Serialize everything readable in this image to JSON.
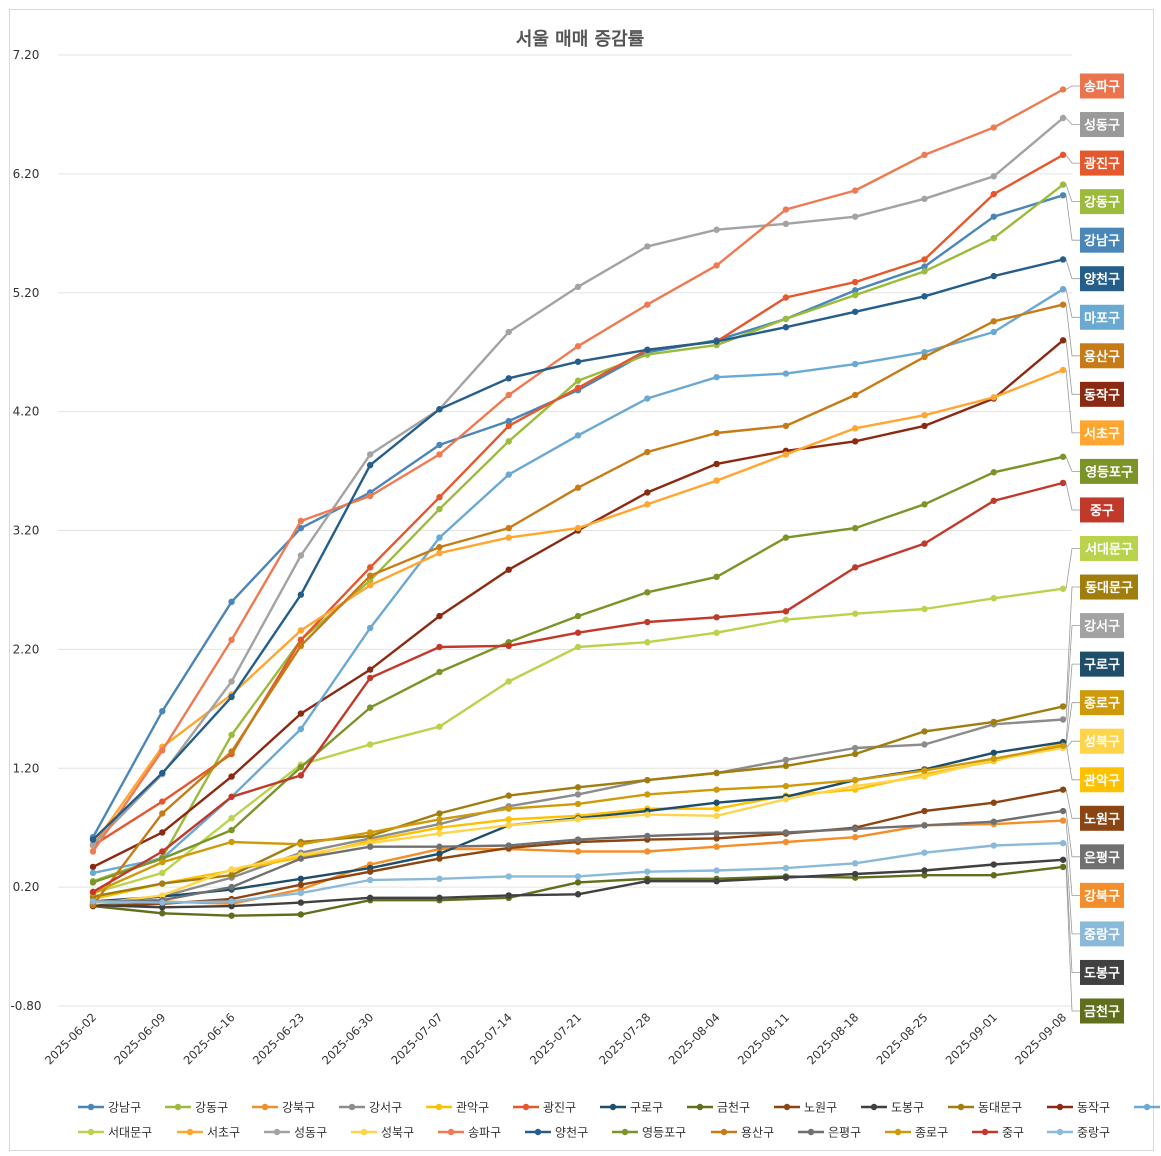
{
  "chart_data": {
    "type": "line",
    "title": "서울 매매 증감률",
    "xlabel": "",
    "ylabel": "",
    "ylim": [
      -0.8,
      7.2
    ],
    "yticks": [
      "7.20",
      "6.20",
      "5.20",
      "4.20",
      "3.20",
      "2.20",
      "1.20",
      "0.20",
      "-0.80"
    ],
    "ytick_values": [
      7.2,
      6.2,
      5.2,
      4.2,
      3.2,
      2.2,
      1.2,
      0.2,
      -0.8
    ],
    "categories": [
      "2025-06-02",
      "2025-06-09",
      "2025-06-16",
      "2025-06-23",
      "2025-06-30",
      "2025-07-07",
      "2025-07-14",
      "2025-07-21",
      "2025-07-28",
      "2025-08-04",
      "2025-08-11",
      "2025-08-18",
      "2025-08-25",
      "2025-09-01",
      "2025-09-08"
    ],
    "legend_position": "bottom",
    "series": [
      {
        "name": "강남구",
        "color": "#4a86b8",
        "values": [
          0.62,
          1.68,
          2.6,
          3.22,
          3.52,
          3.92,
          4.12,
          4.38,
          4.7,
          4.8,
          4.98,
          5.22,
          5.42,
          5.84,
          6.02
        ]
      },
      {
        "name": "강동구",
        "color": "#9bbb3b",
        "values": [
          0.25,
          0.45,
          1.48,
          2.28,
          2.78,
          3.38,
          3.95,
          4.46,
          4.68,
          4.76,
          4.98,
          5.18,
          5.38,
          5.66,
          6.11
        ]
      },
      {
        "name": "강북구",
        "color": "#f28e2b",
        "values": [
          0.06,
          0.08,
          0.06,
          0.18,
          0.39,
          0.52,
          0.52,
          0.5,
          0.5,
          0.54,
          0.58,
          0.62,
          0.72,
          0.73,
          0.76
        ]
      },
      {
        "name": "강서구",
        "color": "#8c8c8c",
        "values": [
          0.07,
          0.12,
          0.28,
          0.49,
          0.61,
          0.73,
          0.88,
          0.98,
          1.1,
          1.16,
          1.27,
          1.37,
          1.4,
          1.57,
          1.61
        ]
      },
      {
        "name": "관악구",
        "color": "#ffc000",
        "values": [
          0.1,
          0.23,
          0.34,
          0.45,
          0.59,
          0.7,
          0.77,
          0.8,
          0.86,
          0.86,
          0.97,
          1.02,
          1.15,
          1.26,
          1.41
        ]
      },
      {
        "name": "광진구",
        "color": "#e5572c",
        "values": [
          0.55,
          0.92,
          1.32,
          2.28,
          2.89,
          3.48,
          4.08,
          4.4,
          4.72,
          4.79,
          5.16,
          5.29,
          5.48,
          6.03,
          6.36
        ]
      },
      {
        "name": "구로구",
        "color": "#1f4e6b",
        "values": [
          0.08,
          0.12,
          0.18,
          0.27,
          0.36,
          0.48,
          0.72,
          0.78,
          0.84,
          0.91,
          0.96,
          1.1,
          1.19,
          1.33,
          1.42
        ]
      },
      {
        "name": "금천구",
        "color": "#5f6f1c",
        "values": [
          0.04,
          -0.02,
          -0.04,
          -0.03,
          0.09,
          0.09,
          0.11,
          0.24,
          0.27,
          0.27,
          0.29,
          0.28,
          0.3,
          0.3,
          0.37
        ]
      },
      {
        "name": "노원구",
        "color": "#8b4513",
        "values": [
          0.04,
          0.06,
          0.1,
          0.22,
          0.33,
          0.44,
          0.53,
          0.58,
          0.6,
          0.61,
          0.65,
          0.7,
          0.84,
          0.91,
          1.02
        ]
      },
      {
        "name": "도봉구",
        "color": "#404040",
        "values": [
          0.05,
          0.03,
          0.04,
          0.07,
          0.11,
          0.11,
          0.13,
          0.14,
          0.25,
          0.25,
          0.28,
          0.31,
          0.34,
          0.39,
          0.43
        ]
      },
      {
        "name": "동대문구",
        "color": "#a07d0c",
        "values": [
          0.12,
          0.23,
          0.3,
          0.58,
          0.63,
          0.82,
          0.97,
          1.04,
          1.1,
          1.16,
          1.22,
          1.32,
          1.51,
          1.59,
          1.72
        ]
      },
      {
        "name": "동작구",
        "color": "#8b2a12",
        "values": [
          0.37,
          0.66,
          1.13,
          1.66,
          2.03,
          2.48,
          2.87,
          3.2,
          3.52,
          3.76,
          3.87,
          3.95,
          4.08,
          4.31,
          4.8
        ]
      },
      {
        "name": "마포구",
        "color": "#6aa9d2",
        "values": [
          0.32,
          0.44,
          0.96,
          1.53,
          2.38,
          3.14,
          3.67,
          4.0,
          4.31,
          4.49,
          4.52,
          4.6,
          4.7,
          4.87,
          5.23
        ]
      },
      {
        "name": "서대문구",
        "color": "#b9d34c",
        "values": [
          0.15,
          0.32,
          0.78,
          1.23,
          1.4,
          1.55,
          1.93,
          2.22,
          2.26,
          2.34,
          2.45,
          2.5,
          2.54,
          2.63,
          2.71
        ]
      },
      {
        "name": "서초구",
        "color": "#ffa630",
        "values": [
          0.55,
          1.38,
          1.82,
          2.36,
          2.74,
          3.01,
          3.14,
          3.22,
          3.42,
          3.62,
          3.84,
          4.06,
          4.17,
          4.32,
          4.55
        ]
      },
      {
        "name": "성동구",
        "color": "#a3a3a3",
        "values": [
          0.56,
          1.15,
          1.93,
          2.99,
          3.84,
          4.22,
          4.87,
          5.25,
          5.59,
          5.73,
          5.78,
          5.84,
          5.99,
          6.18,
          6.67
        ]
      },
      {
        "name": "성북구",
        "color": "#ffd44a",
        "values": [
          0.06,
          0.13,
          0.35,
          0.47,
          0.57,
          0.65,
          0.72,
          0.77,
          0.81,
          0.8,
          0.94,
          1.05,
          1.13,
          1.27,
          1.37
        ]
      },
      {
        "name": "송파구",
        "color": "#ee7a52",
        "values": [
          0.5,
          1.35,
          2.28,
          3.28,
          3.49,
          3.84,
          4.34,
          4.75,
          5.1,
          5.43,
          5.9,
          6.06,
          6.36,
          6.59,
          6.91
        ]
      },
      {
        "name": "양천구",
        "color": "#255e8a",
        "values": [
          0.6,
          1.16,
          1.8,
          2.66,
          3.75,
          4.22,
          4.48,
          4.62,
          4.72,
          4.79,
          4.91,
          5.04,
          5.17,
          5.34,
          5.48
        ]
      },
      {
        "name": "영등포구",
        "color": "#7b9428",
        "values": [
          0.24,
          0.44,
          0.68,
          1.21,
          1.71,
          2.01,
          2.26,
          2.48,
          2.68,
          2.81,
          3.14,
          3.22,
          3.42,
          3.69,
          3.82
        ]
      },
      {
        "name": "용산구",
        "color": "#c77b17",
        "values": [
          0.05,
          0.82,
          1.34,
          2.23,
          2.82,
          3.06,
          3.22,
          3.56,
          3.86,
          4.02,
          4.08,
          4.34,
          4.66,
          4.96,
          5.1
        ]
      },
      {
        "name": "은평구",
        "color": "#707070",
        "values": [
          0.08,
          0.09,
          0.2,
          0.44,
          0.54,
          0.54,
          0.55,
          0.6,
          0.63,
          0.65,
          0.66,
          0.69,
          0.72,
          0.75,
          0.84
        ]
      },
      {
        "name": "종로구",
        "color": "#cf9a0a",
        "values": [
          0.15,
          0.41,
          0.58,
          0.56,
          0.66,
          0.77,
          0.86,
          0.9,
          0.98,
          1.02,
          1.05,
          1.1,
          1.18,
          1.28,
          1.39
        ]
      },
      {
        "name": "중구",
        "color": "#c0392b",
        "values": [
          0.16,
          0.5,
          0.96,
          1.14,
          1.96,
          2.22,
          2.23,
          2.34,
          2.43,
          2.47,
          2.52,
          2.89,
          3.09,
          3.45,
          3.6
        ]
      },
      {
        "name": "중랑구",
        "color": "#8ab9da",
        "values": [
          0.08,
          0.07,
          0.08,
          0.15,
          0.26,
          0.27,
          0.29,
          0.29,
          0.33,
          0.34,
          0.36,
          0.4,
          0.49,
          0.55,
          0.57
        ]
      }
    ],
    "end_labels": [
      {
        "name": "송파구",
        "color": "#e9744d"
      },
      {
        "name": "성동구",
        "color": "#9a9a9a"
      },
      {
        "name": "광진구",
        "color": "#e5572c"
      },
      {
        "name": "강동구",
        "color": "#9bbb3b"
      },
      {
        "name": "강남구",
        "color": "#4a86b8"
      },
      {
        "name": "양천구",
        "color": "#255e8a"
      },
      {
        "name": "마포구",
        "color": "#6aa9d2"
      },
      {
        "name": "용산구",
        "color": "#c77b17"
      },
      {
        "name": "동작구",
        "color": "#8b2a12"
      },
      {
        "name": "서초구",
        "color": "#ffa630"
      },
      {
        "name": "영등포구",
        "color": "#7b9428"
      },
      {
        "name": "중구",
        "color": "#c0392b"
      },
      {
        "name": "서대문구",
        "color": "#b9d34c"
      },
      {
        "name": "동대문구",
        "color": "#a07d0c"
      },
      {
        "name": "강서구",
        "color": "#a3a3a3"
      },
      {
        "name": "구로구",
        "color": "#1f4e6b"
      },
      {
        "name": "종로구",
        "color": "#cf9a0a"
      },
      {
        "name": "성북구",
        "color": "#ffd44a"
      },
      {
        "name": "관악구",
        "color": "#ffc000"
      },
      {
        "name": "노원구",
        "color": "#8b4513"
      },
      {
        "name": "은평구",
        "color": "#707070"
      },
      {
        "name": "강북구",
        "color": "#f28e2b"
      },
      {
        "name": "중랑구",
        "color": "#8ab9da"
      },
      {
        "name": "도봉구",
        "color": "#404040"
      },
      {
        "name": "금천구",
        "color": "#5f6f1c"
      }
    ]
  }
}
